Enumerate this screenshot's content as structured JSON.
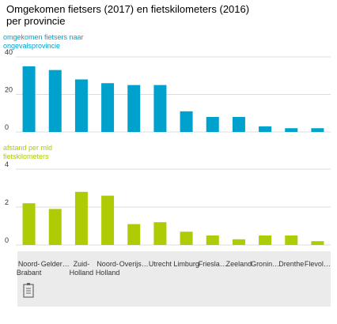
{
  "title": "Omgekomen fietsers (2017) en fietskilometers (2016) per provincie",
  "chart_data": [
    {
      "type": "bar",
      "y_label": "omgekomen fietsers naar ongevalsprovincie",
      "color": "#00a1cd",
      "categories": [
        "Noord-Brabant",
        "Gelder…",
        "Zuid-Holland",
        "Noord-Holland",
        "Overijs…",
        "Utrecht",
        "Limburg",
        "Friesla…",
        "Zeeland",
        "Gronin…",
        "Drenthe",
        "Flevol…"
      ],
      "values": [
        35,
        33,
        28,
        26,
        25,
        25,
        11,
        8,
        8,
        3,
        2,
        2
      ],
      "ylim": [
        0,
        40
      ],
      "yticks": [
        0,
        20,
        40
      ],
      "grid": true
    },
    {
      "type": "bar",
      "y_label": "afstand per mld fietskilometers",
      "color": "#afcb05",
      "values": [
        2.2,
        1.9,
        2.8,
        2.6,
        1.1,
        1.2,
        0.7,
        0.5,
        0.3,
        0.5,
        0.5,
        0.2
      ],
      "ylim": [
        0,
        4
      ],
      "yticks": [
        0,
        2,
        4
      ],
      "grid": true
    }
  ]
}
